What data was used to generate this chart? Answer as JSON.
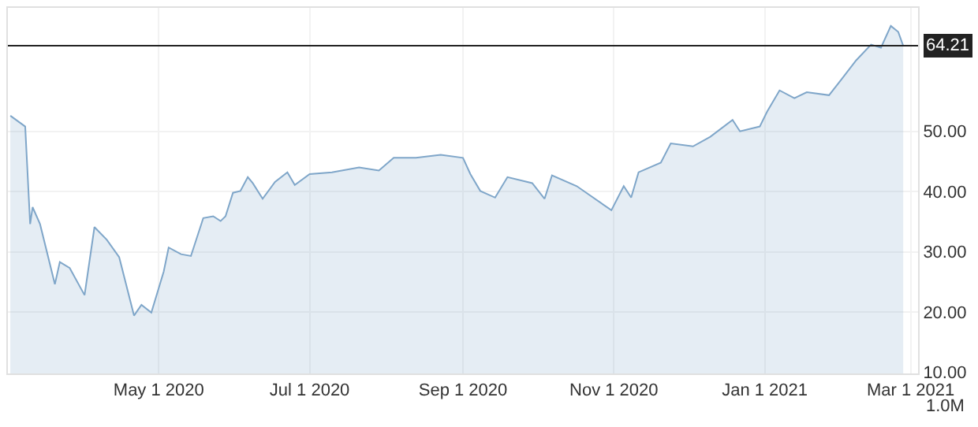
{
  "chart_data": {
    "type": "area",
    "x": [
      "2020-03-02",
      "2020-03-08",
      "2020-03-10",
      "2020-03-11",
      "2020-03-14",
      "2020-03-20",
      "2020-03-22",
      "2020-03-26",
      "2020-04-01",
      "2020-04-05",
      "2020-04-10",
      "2020-04-15",
      "2020-04-21",
      "2020-04-24",
      "2020-04-28",
      "2020-05-03",
      "2020-05-05",
      "2020-05-10",
      "2020-05-14",
      "2020-05-19",
      "2020-05-23",
      "2020-05-26",
      "2020-05-28",
      "2020-05-31",
      "2020-06-03",
      "2020-06-06",
      "2020-06-08",
      "2020-06-12",
      "2020-06-17",
      "2020-06-22",
      "2020-06-25",
      "2020-07-01",
      "2020-07-10",
      "2020-07-21",
      "2020-07-29",
      "2020-08-04",
      "2020-08-13",
      "2020-08-23",
      "2020-09-01",
      "2020-09-04",
      "2020-09-08",
      "2020-09-14",
      "2020-09-19",
      "2020-09-29",
      "2020-10-04",
      "2020-10-07",
      "2020-10-17",
      "2020-10-31",
      "2020-11-05",
      "2020-11-08",
      "2020-11-11",
      "2020-11-20",
      "2020-11-24",
      "2020-12-03",
      "2020-12-10",
      "2020-12-19",
      "2020-12-22",
      "2020-12-30",
      "2021-01-02",
      "2021-01-07",
      "2021-01-13",
      "2021-01-18",
      "2021-01-27",
      "2021-02-01",
      "2021-02-07",
      "2021-02-13",
      "2021-02-17",
      "2021-02-21",
      "2021-02-24",
      "2021-02-26"
    ],
    "series": [
      {
        "color": "#7fa6c9",
        "values": [
          52.6,
          50.8,
          34.6,
          37.4,
          34.6,
          24.6,
          28.3,
          27.3,
          22.8,
          34.1,
          32.0,
          29.1,
          19.4,
          21.2,
          19.9,
          26.7,
          30.7,
          29.6,
          29.3,
          35.6,
          35.9,
          35.1,
          35.9,
          39.8,
          40.1,
          42.4,
          41.4,
          38.8,
          41.6,
          43.2,
          41.1,
          42.9,
          43.2,
          44.0,
          43.5,
          45.6,
          45.6,
          46.1,
          45.6,
          42.9,
          40.1,
          39.0,
          42.4,
          41.4,
          38.8,
          42.7,
          40.9,
          36.9,
          40.9,
          39.0,
          43.2,
          44.8,
          48.0,
          47.5,
          49.1,
          51.9,
          50.0,
          50.8,
          53.3,
          56.8,
          55.5,
          56.5,
          56.0,
          58.6,
          61.8,
          64.4,
          63.9,
          67.5,
          66.5,
          64.21
        ]
      }
    ],
    "xlim": [
      "2020-03-01",
      "2021-03-04"
    ],
    "xticks": [
      {
        "value": "2020-05-01",
        "label": "May 1 2020"
      },
      {
        "value": "2020-07-01",
        "label": "Jul 1 2020"
      },
      {
        "value": "2020-09-01",
        "label": "Sep 1 2020"
      },
      {
        "value": "2020-11-01",
        "label": "Nov 1 2020"
      },
      {
        "value": "2021-01-01",
        "label": "Jan 1 2021"
      },
      {
        "value": "2021-03-01",
        "label": "Mar 1 2021"
      }
    ],
    "ylim": [
      9.8,
      70.5
    ],
    "yticks": [
      {
        "value": 10,
        "label": "10.00"
      },
      {
        "value": 20,
        "label": "20.00"
      },
      {
        "value": 30,
        "label": "30.00"
      },
      {
        "value": 40,
        "label": "40.00"
      },
      {
        "value": 50,
        "label": "50.00"
      }
    ],
    "ref_lines": [
      {
        "axis": "y",
        "value": 64.21,
        "label": "64.21",
        "color": "#222222"
      }
    ],
    "annotations": [
      "1.0M"
    ],
    "grid": true
  }
}
